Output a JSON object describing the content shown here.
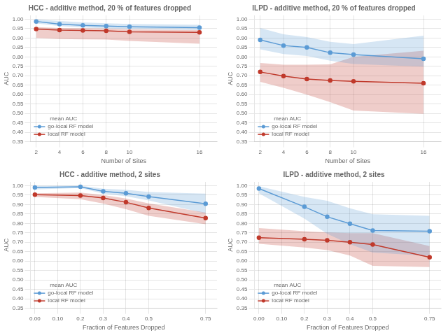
{
  "chart_data": [
    {
      "type": "line",
      "title": "HCC - additive method, 20 % of features dropped",
      "x_label": "Number of Sites",
      "y_label": "AUC",
      "x": [
        2,
        4,
        6,
        8,
        10,
        16
      ],
      "series": [
        {
          "name": "go-local RF model",
          "color": "#5b9bd5",
          "marker": "circle",
          "values": [
            0.988,
            0.974,
            0.967,
            0.963,
            0.96,
            0.955
          ],
          "upper": [
            0.999,
            0.99,
            0.983,
            0.978,
            0.975,
            0.97
          ],
          "lower": [
            0.977,
            0.963,
            0.956,
            0.951,
            0.948,
            0.942
          ]
        },
        {
          "name": "local RF model",
          "color": "#c0392b",
          "marker": "circle",
          "values": [
            0.948,
            0.942,
            0.94,
            0.938,
            0.933,
            0.93
          ],
          "upper": [
            0.958,
            0.953,
            0.952,
            0.95,
            0.946,
            0.942
          ],
          "lower": [
            0.9,
            0.895,
            0.893,
            0.892,
            0.885,
            0.87
          ]
        }
      ],
      "xlim": [
        1.5,
        17.5
      ],
      "xticks": [
        2,
        4,
        6,
        8,
        10,
        16
      ],
      "ylim": [
        0.35,
        1.02
      ],
      "yticks": [
        0.35,
        {
          "value": 0.4,
          "label": "0.40"
        },
        0.45,
        {
          "value": 0.5,
          "label": "0.50"
        },
        0.55,
        {
          "value": 0.6,
          "label": "0.60"
        },
        0.65,
        {
          "value": 0.7,
          "label": "0.70"
        },
        0.75,
        {
          "value": 0.8,
          "label": "0.80"
        },
        0.85,
        {
          "value": 0.9,
          "label": "0.90"
        },
        0.95,
        {
          "value": 1.0,
          "label": "1.00"
        }
      ],
      "grid": true,
      "legend": "lower left",
      "legend_title": "mean AUC"
    },
    {
      "type": "line",
      "title": "ILPD - additive method, 20 % of features dropped",
      "x_label": "Number of Sites",
      "y_label": "AUC",
      "x": [
        2,
        4,
        6,
        8,
        10,
        16
      ],
      "series": [
        {
          "name": "go-local RF model",
          "color": "#5b9bd5",
          "marker": "circle",
          "values": [
            0.89,
            0.86,
            0.85,
            0.822,
            0.812,
            0.79
          ],
          "upper": [
            0.953,
            0.92,
            0.905,
            0.88,
            0.868,
            0.912
          ],
          "lower": [
            0.84,
            0.815,
            0.805,
            0.78,
            0.762,
            0.748
          ]
        },
        {
          "name": "local RF model",
          "color": "#c0392b",
          "marker": "circle",
          "values": [
            0.72,
            0.698,
            0.682,
            0.675,
            0.67,
            0.66
          ],
          "upper": [
            0.768,
            0.758,
            0.758,
            0.76,
            0.8,
            0.833
          ],
          "lower": [
            0.668,
            0.636,
            0.6,
            0.56,
            0.515,
            0.498
          ]
        }
      ],
      "xlim": [
        1.5,
        17.5
      ],
      "xticks": [
        2,
        4,
        6,
        8,
        10,
        16
      ],
      "ylim": [
        0.35,
        1.02
      ],
      "yticks": [
        0.35,
        {
          "value": 0.4,
          "label": "0.40"
        },
        0.45,
        {
          "value": 0.5,
          "label": "0.50"
        },
        0.55,
        {
          "value": 0.6,
          "label": "0.60"
        },
        0.65,
        {
          "value": 0.7,
          "label": "0.70"
        },
        0.75,
        {
          "value": 0.8,
          "label": "0.80"
        },
        0.85,
        {
          "value": 0.9,
          "label": "0.90"
        },
        0.95,
        {
          "value": 1.0,
          "label": "1.00"
        }
      ],
      "grid": true,
      "legend": "lower left",
      "legend_title": "mean AUC"
    },
    {
      "type": "line",
      "title": "HCC - additive method, 2 sites",
      "x_label": "Fraction of Features Dropped",
      "y_label": "AUC",
      "x": [
        0.0,
        0.2,
        0.3,
        0.4,
        0.5,
        0.75
      ],
      "series": [
        {
          "name": "go-local RF model",
          "color": "#5b9bd5",
          "marker": "circle",
          "values": [
            0.99,
            0.994,
            0.97,
            0.96,
            0.942,
            0.904
          ],
          "upper": [
            0.999,
            1.0,
            0.984,
            0.978,
            0.966,
            0.958
          ],
          "lower": [
            0.98,
            0.988,
            0.958,
            0.944,
            0.922,
            0.853
          ]
        },
        {
          "name": "local RF model",
          "color": "#c0392b",
          "marker": "circle",
          "values": [
            0.952,
            0.948,
            0.935,
            0.912,
            0.882,
            0.828
          ],
          "upper": [
            0.96,
            0.963,
            0.95,
            0.932,
            0.906,
            0.858
          ],
          "lower": [
            0.94,
            0.928,
            0.905,
            0.875,
            0.84,
            0.796
          ]
        }
      ],
      "xlim": [
        -0.02,
        0.8
      ],
      "xticks": [
        {
          "value": 0.0,
          "label": "0.00"
        },
        {
          "value": 0.1,
          "label": "0.10"
        },
        0.2,
        0.3,
        0.4,
        0.5,
        0.75
      ],
      "ylim": [
        0.35,
        1.02
      ],
      "yticks": [
        0.35,
        {
          "value": 0.4,
          "label": "0.40"
        },
        0.45,
        {
          "value": 0.5,
          "label": "0.50"
        },
        0.55,
        {
          "value": 0.6,
          "label": "0.60"
        },
        0.65,
        {
          "value": 0.7,
          "label": "0.70"
        },
        0.75,
        {
          "value": 0.8,
          "label": "0.80"
        },
        0.85,
        {
          "value": 0.9,
          "label": "0.90"
        },
        0.95,
        {
          "value": 1.0,
          "label": "1.00"
        }
      ],
      "grid": true,
      "legend": "lower left",
      "legend_title": "mean AUC"
    },
    {
      "type": "line",
      "title": "ILPD - additive method, 2 sites",
      "x_label": "Fraction of Features Dropped",
      "y_label": "AUC",
      "x": [
        0.0,
        0.2,
        0.3,
        0.4,
        0.5,
        0.75
      ],
      "series": [
        {
          "name": "go-local RF model",
          "color": "#5b9bd5",
          "marker": "circle",
          "values": [
            0.985,
            0.888,
            0.835,
            0.798,
            0.762,
            0.758
          ],
          "upper": [
            0.997,
            0.94,
            0.92,
            0.88,
            0.848,
            0.84
          ],
          "lower": [
            0.96,
            0.825,
            0.745,
            0.69,
            0.645,
            0.628
          ]
        },
        {
          "name": "local RF model",
          "color": "#c0392b",
          "marker": "circle",
          "values": [
            0.724,
            0.716,
            0.71,
            0.7,
            0.688,
            0.62
          ],
          "upper": [
            0.775,
            0.758,
            0.752,
            0.748,
            0.748,
            0.68
          ],
          "lower": [
            0.692,
            0.672,
            0.658,
            0.63,
            0.575,
            0.568
          ]
        }
      ],
      "xlim": [
        -0.02,
        0.8
      ],
      "xticks": [
        {
          "value": 0.0,
          "label": "0.00"
        },
        {
          "value": 0.1,
          "label": "0.10"
        },
        0.2,
        0.3,
        0.4,
        0.5,
        0.75
      ],
      "ylim": [
        0.35,
        1.02
      ],
      "yticks": [
        0.35,
        {
          "value": 0.4,
          "label": "0.40"
        },
        0.45,
        {
          "value": 0.5,
          "label": "0.50"
        },
        0.55,
        {
          "value": 0.6,
          "label": "0.60"
        },
        0.65,
        {
          "value": 0.7,
          "label": "0.70"
        },
        0.75,
        {
          "value": 0.8,
          "label": "0.80"
        },
        0.85,
        {
          "value": 0.9,
          "label": "0.90"
        },
        0.95,
        {
          "value": 1.0,
          "label": "1.00"
        }
      ],
      "grid": true,
      "legend": "lower left",
      "legend_title": "mean AUC"
    }
  ]
}
